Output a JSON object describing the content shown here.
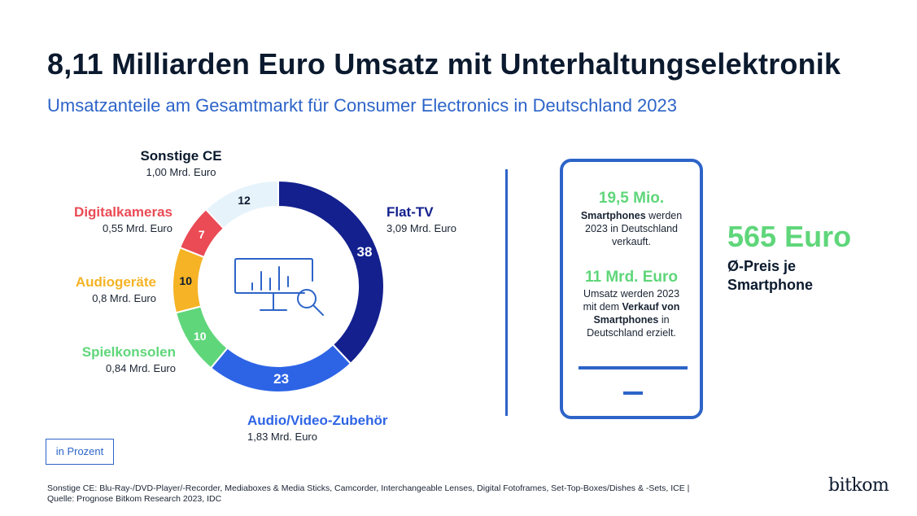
{
  "header": {
    "title": "8,11 Milliarden Euro Umsatz mit Unterhaltungselektronik",
    "subtitle": "Umsatzanteile am Gesamtmarkt für Consumer Electronics in Deutschland 2023"
  },
  "chart_data": {
    "type": "pie",
    "variant": "donut",
    "unit_label": "in Prozent",
    "slices": [
      {
        "name": "Flat-TV",
        "value": 38,
        "amount": "3,09 Mrd. Euro",
        "color": "#13208e"
      },
      {
        "name": "Audio/Video-Zubehör",
        "value": 23,
        "amount": "1,83 Mrd. Euro",
        "color": "#2d64e6"
      },
      {
        "name": "Spielkonsolen",
        "value": 10,
        "amount": "0,84 Mrd. Euro",
        "color": "#5fd67a"
      },
      {
        "name": "Audiogeräte",
        "value": 10,
        "amount": "0,8 Mrd. Euro",
        "color": "#f5b325"
      },
      {
        "name": "Digitalkameras",
        "value": 7,
        "amount": "0,55 Mrd. Euro",
        "color": "#ea4b55"
      },
      {
        "name": "Sonstige CE",
        "value": 12,
        "amount": "1,00 Mrd. Euro",
        "color": "#e6f3fb"
      }
    ],
    "center_icon": "monitor-chart-search-icon"
  },
  "smartphone": {
    "stat1_value": "19,5 Mio.",
    "stat1_bold": "Smartphones",
    "stat1_rest1": " werden",
    "stat1_line2": "2023 in Deutschland",
    "stat1_line3": "verkauft.",
    "stat2_value": "11 Mrd. Euro",
    "stat2_line1": "Umsatz werden 2023",
    "stat2_line2a": "mit dem ",
    "stat2_line2b": "Verkauf von",
    "stat2_line3a": "Smartphones",
    "stat2_line3b": " in",
    "stat2_line4": "Deutschland erzielt.",
    "price_value": "565 Euro",
    "price_label_line1": "Ø-Preis je",
    "price_label_line2": "Smartphone",
    "icon": "smartphone-icon"
  },
  "footer": {
    "note_line1": "Sonstige CE: Blu-Ray-/DVD-Player/-Recorder, Mediaboxes & Media Sticks, Camcorder, Interchangeable Lenses, Digital Fotoframes, Set-Top-Boxes/Dishes & -Sets, ICE |",
    "note_line2": "Quelle: Prognose Bitkom Research 2023, IDC",
    "logo": "bitkom"
  }
}
